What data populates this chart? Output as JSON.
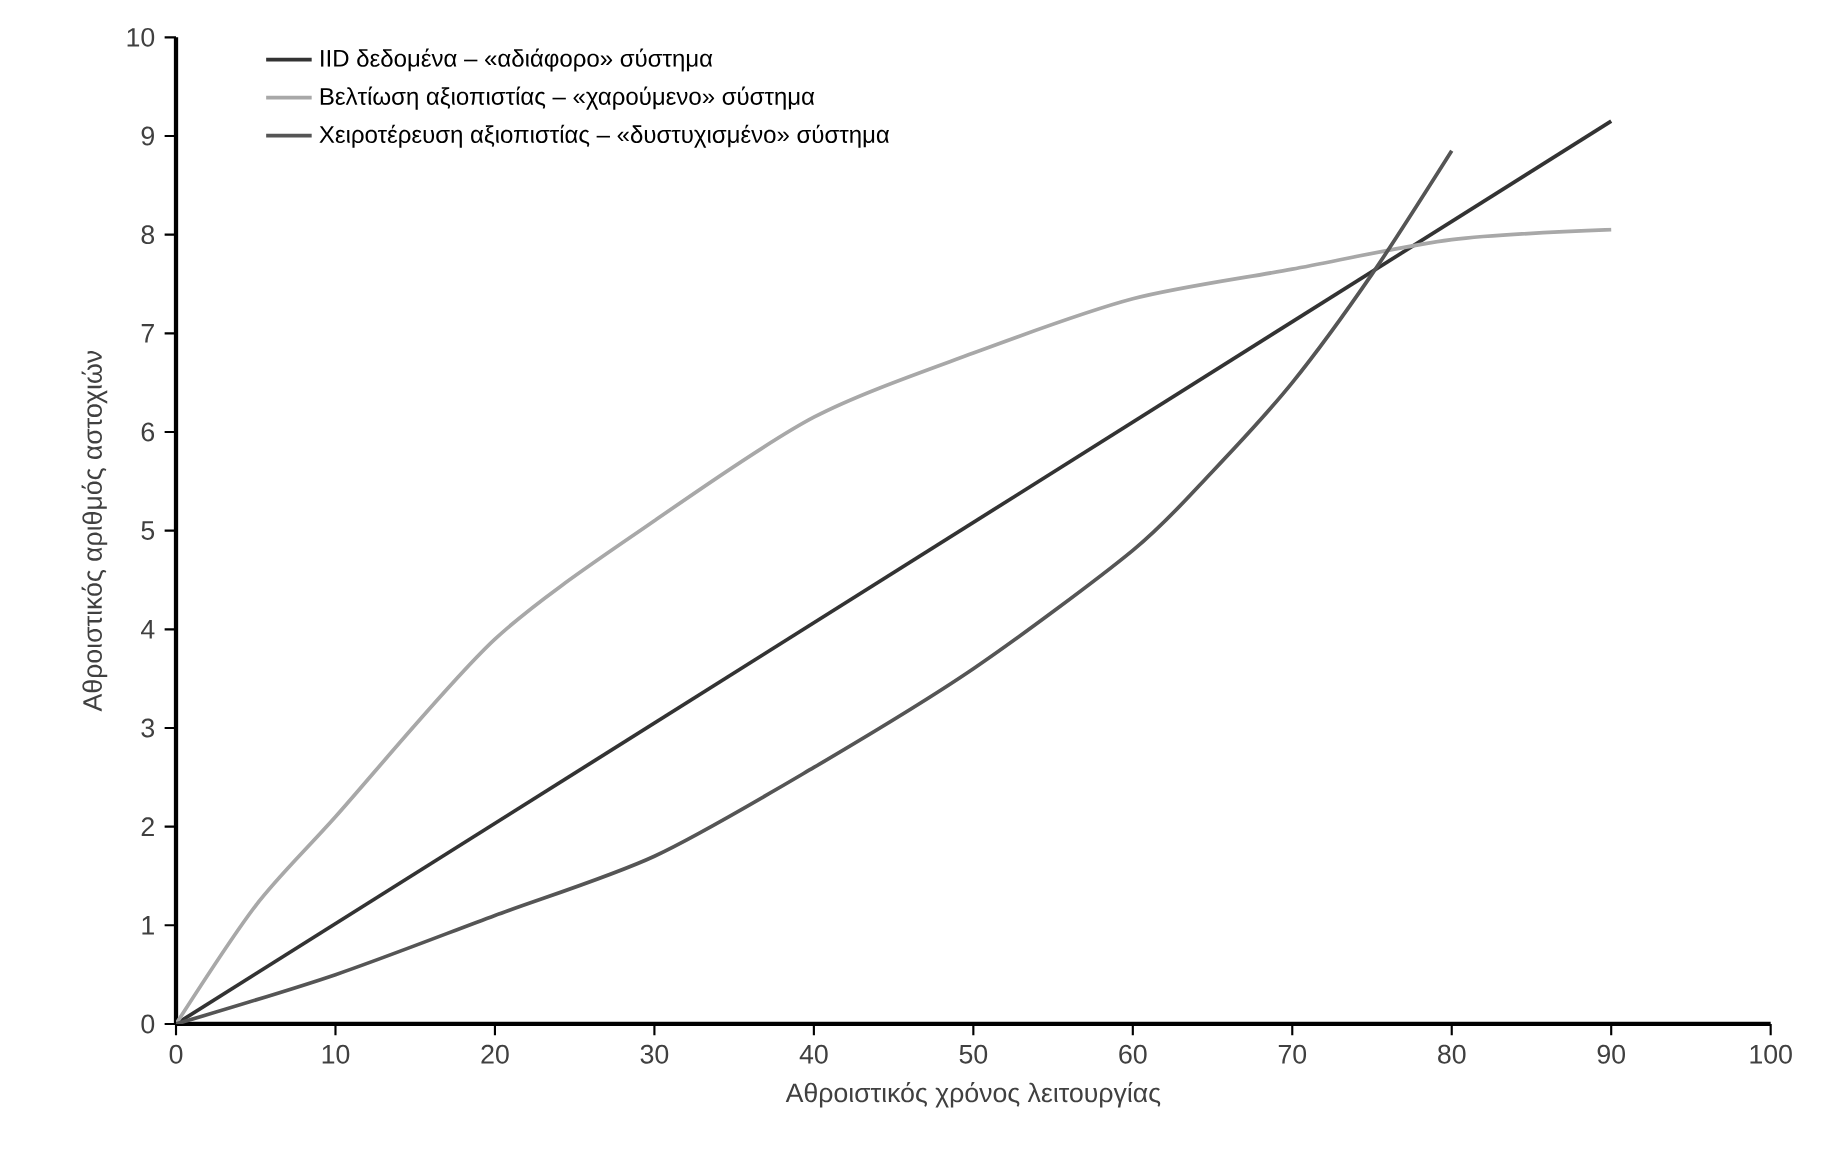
{
  "chart_data": {
    "type": "line",
    "xlabel": "Αθροιστικός χρόνος λειτουργίας",
    "ylabel": "Αθροιστικός αριθμός αστοχιών",
    "xlim": [
      0,
      100
    ],
    "ylim": [
      0,
      10
    ],
    "xticks": [
      0,
      10,
      20,
      30,
      40,
      50,
      60,
      70,
      80,
      90,
      100
    ],
    "yticks": [
      0,
      1,
      2,
      3,
      4,
      5,
      6,
      7,
      8,
      9,
      10
    ],
    "grid": false,
    "legend": "top left",
    "marker": "none",
    "line_style": "solid",
    "series": [
      {
        "name": "IID δεδομένα – «αδιάφορο» σύστημα",
        "color": "#333333",
        "x": [
          0,
          90
        ],
        "values": [
          0,
          9.15
        ]
      },
      {
        "name": "Βελτίωση αξιοπιστίας – «χαρούμενο» σύστημα",
        "color": "#a8a8a8",
        "x": [
          0,
          5,
          10,
          20,
          30,
          40,
          50,
          60,
          70,
          80,
          90
        ],
        "values": [
          0,
          1.2,
          2.1,
          3.9,
          5.1,
          6.15,
          6.8,
          7.35,
          7.65,
          7.95,
          8.05
        ]
      },
      {
        "name": "Χειροτέρευση αξιοπιστίας – «δυστυχισμένο» σύστημα",
        "color": "#555555",
        "x": [
          0,
          10,
          20,
          30,
          40,
          50,
          60,
          65,
          70,
          75,
          80
        ],
        "values": [
          0,
          0.5,
          1.1,
          1.7,
          2.6,
          3.6,
          4.8,
          5.6,
          6.5,
          7.6,
          8.85
        ]
      }
    ]
  }
}
